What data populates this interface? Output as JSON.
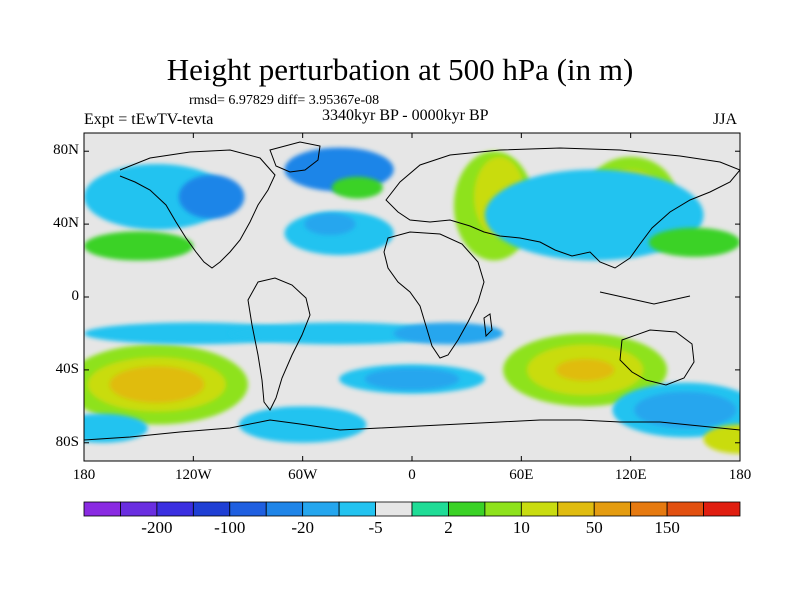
{
  "title": "Height perturbation at 500 hPa (in m)",
  "stats": "rmsd= 6.97829 diff= 3.95367e-08",
  "left_label": "Expt = tEwTV-tevta",
  "center_label": "3340kyr BP - 0000kyr BP",
  "right_label": "JJA",
  "colors": {
    "background_field": "#e6e6e6",
    "frame": "#000000"
  },
  "map": {
    "projection": "cylindrical-equidistant",
    "lon_range": [
      -180,
      180
    ],
    "lat_range": [
      -90,
      90
    ],
    "y_ticks": [
      {
        "lat": 80,
        "label": "80N"
      },
      {
        "lat": 40,
        "label": "40N"
      },
      {
        "lat": 0,
        "label": "0"
      },
      {
        "lat": -40,
        "label": "40S"
      },
      {
        "lat": -80,
        "label": "80S"
      }
    ],
    "x_ticks": [
      {
        "lon": -180,
        "label": "180"
      },
      {
        "lon": -120,
        "label": "120W"
      },
      {
        "lon": -60,
        "label": "60W"
      },
      {
        "lon": 0,
        "label": "0"
      },
      {
        "lon": 60,
        "label": "60E"
      },
      {
        "lon": 120,
        "label": "120E"
      },
      {
        "lon": 180,
        "label": "180"
      }
    ]
  },
  "colorbar": {
    "colors": [
      "#8a2be2",
      "#6a2ee0",
      "#3b2fe0",
      "#1f3fd4",
      "#1f5fe0",
      "#1f85e8",
      "#25a6ee",
      "#23c3f0",
      "#e6e6e6",
      "#1fdc96",
      "#3ad226",
      "#8ee21c",
      "#c9dc10",
      "#e0bc10",
      "#e49c10",
      "#e67a10",
      "#e25010",
      "#e01e10"
    ],
    "labels": [
      {
        "after": 1,
        "text": "-200"
      },
      {
        "after": 3,
        "text": "-100"
      },
      {
        "after": 5,
        "text": "-20"
      },
      {
        "after": 7,
        "text": "-5"
      },
      {
        "after": 9,
        "text": "2"
      },
      {
        "after": 11,
        "text": "10"
      },
      {
        "after": 13,
        "text": "50"
      },
      {
        "after": 15,
        "text": "150"
      }
    ]
  },
  "field_blobs": [
    {
      "lon": -140,
      "lat": -48,
      "rx": 50,
      "ry": 22,
      "level": 11
    },
    {
      "lon": -140,
      "lat": -48,
      "rx": 38,
      "ry": 15,
      "level": 12
    },
    {
      "lon": -140,
      "lat": -48,
      "rx": 26,
      "ry": 10,
      "level": 13
    },
    {
      "lon": -120,
      "lat": -20,
      "rx": 60,
      "ry": 6,
      "level": 7
    },
    {
      "lon": -40,
      "lat": -20,
      "rx": 60,
      "ry": 6,
      "level": 7
    },
    {
      "lon": 20,
      "lat": -20,
      "rx": 30,
      "ry": 6,
      "level": 6
    },
    {
      "lon": 0,
      "lat": -45,
      "rx": 40,
      "ry": 8,
      "level": 7
    },
    {
      "lon": 0,
      "lat": -45,
      "rx": 26,
      "ry": 6,
      "level": 6
    },
    {
      "lon": -60,
      "lat": -70,
      "rx": 35,
      "ry": 10,
      "level": 7
    },
    {
      "lon": -170,
      "lat": -72,
      "rx": 25,
      "ry": 8,
      "level": 7
    },
    {
      "lon": 95,
      "lat": -40,
      "rx": 45,
      "ry": 20,
      "level": 11
    },
    {
      "lon": 95,
      "lat": -40,
      "rx": 32,
      "ry": 14,
      "level": 12
    },
    {
      "lon": 95,
      "lat": -40,
      "rx": 16,
      "ry": 6,
      "level": 13
    },
    {
      "lon": 150,
      "lat": -62,
      "rx": 40,
      "ry": 15,
      "level": 7
    },
    {
      "lon": 150,
      "lat": -62,
      "rx": 28,
      "ry": 10,
      "level": 6
    },
    {
      "lon": 180,
      "lat": -78,
      "rx": 20,
      "ry": 8,
      "level": 12
    },
    {
      "lon": 45,
      "lat": 50,
      "rx": 22,
      "ry": 30,
      "level": 11
    },
    {
      "lon": 48,
      "lat": 55,
      "rx": 14,
      "ry": 22,
      "level": 12
    },
    {
      "lon": 120,
      "lat": 55,
      "rx": 25,
      "ry": 22,
      "level": 11
    },
    {
      "lon": 120,
      "lat": 60,
      "rx": 15,
      "ry": 10,
      "level": 12
    },
    {
      "lon": 100,
      "lat": 45,
      "rx": 60,
      "ry": 25,
      "level": 7
    },
    {
      "lon": -140,
      "lat": 55,
      "rx": 40,
      "ry": 18,
      "level": 7
    },
    {
      "lon": -110,
      "lat": 55,
      "rx": 18,
      "ry": 12,
      "level": 5
    },
    {
      "lon": -40,
      "lat": 35,
      "rx": 30,
      "ry": 12,
      "level": 7
    },
    {
      "lon": -45,
      "lat": 40,
      "rx": 14,
      "ry": 6,
      "level": 6
    },
    {
      "lon": -40,
      "lat": 70,
      "rx": 30,
      "ry": 12,
      "level": 5
    },
    {
      "lon": -30,
      "lat": 60,
      "rx": 14,
      "ry": 6,
      "level": 10
    },
    {
      "lon": -150,
      "lat": 28,
      "rx": 30,
      "ry": 8,
      "level": 10
    },
    {
      "lon": 155,
      "lat": 30,
      "rx": 25,
      "ry": 8,
      "level": 10
    }
  ]
}
